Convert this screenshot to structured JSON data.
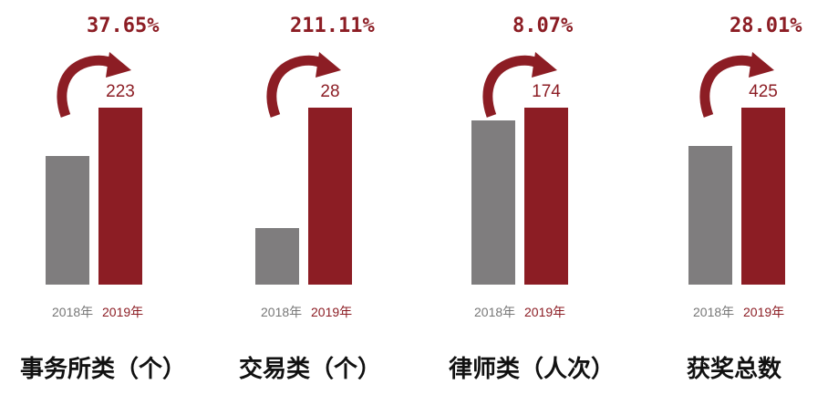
{
  "colors": {
    "prev": "#7f7d7e",
    "curr": "#8c1d24",
    "text_dark": "#111111",
    "text_gray": "#777777"
  },
  "chart_data": [
    {
      "type": "bar",
      "category": "事务所类（个）",
      "growth": "37.65%",
      "series": [
        {
          "name": "2018年",
          "value": 162
        },
        {
          "name": "2019年",
          "value": 223,
          "label": "223"
        }
      ]
    },
    {
      "type": "bar",
      "category": "交易类（个）",
      "growth": "211.11%",
      "series": [
        {
          "name": "2018年",
          "value": 9
        },
        {
          "name": "2019年",
          "value": 28,
          "label": "28"
        }
      ]
    },
    {
      "type": "bar",
      "category": "律师类（人次）",
      "growth": "8.07%",
      "series": [
        {
          "name": "2018年",
          "value": 161
        },
        {
          "name": "2019年",
          "value": 174,
          "label": "174"
        }
      ]
    },
    {
      "type": "bar",
      "category": "获奖总数",
      "growth": "28.01%",
      "series": [
        {
          "name": "2018年",
          "value": 332
        },
        {
          "name": "2019年",
          "value": 425,
          "label": "425"
        }
      ]
    }
  ]
}
